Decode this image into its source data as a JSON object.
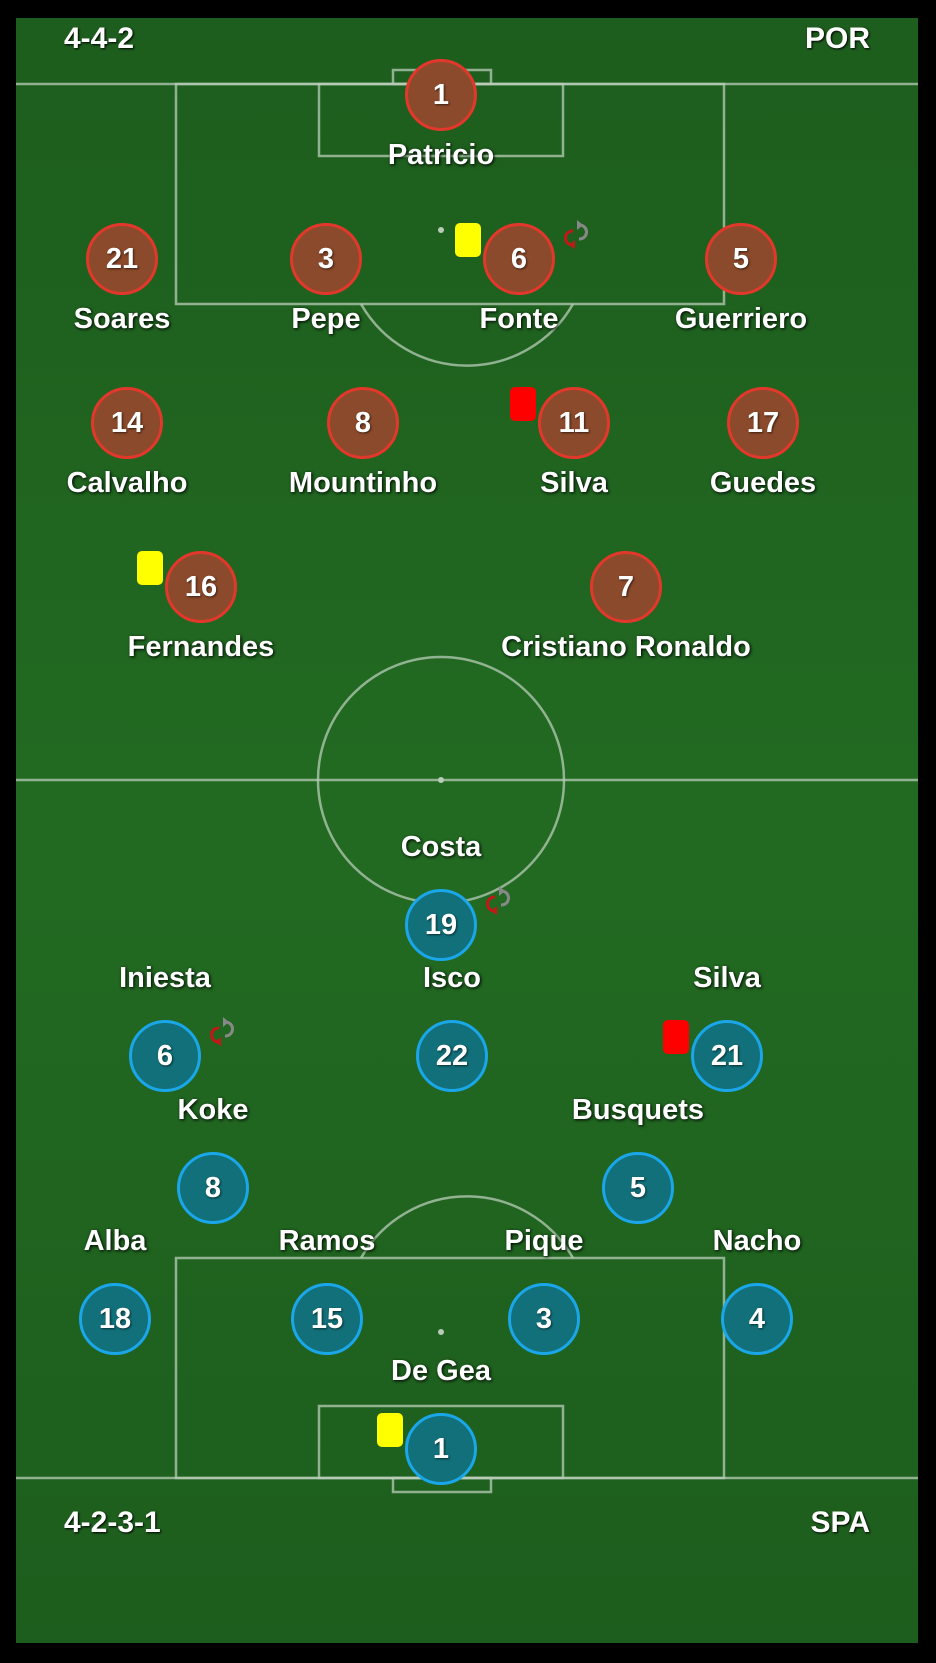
{
  "home": {
    "formation": "4-4-2",
    "team": "POR",
    "players": [
      {
        "number": "1",
        "name": "Patricio"
      },
      {
        "number": "21",
        "name": "Soares"
      },
      {
        "number": "3",
        "name": "Pepe"
      },
      {
        "number": "6",
        "name": "Fonte"
      },
      {
        "number": "5",
        "name": "Guerriero"
      },
      {
        "number": "14",
        "name": "Calvalho"
      },
      {
        "number": "8",
        "name": "Mountinho"
      },
      {
        "number": "11",
        "name": "Silva"
      },
      {
        "number": "17",
        "name": "Guedes"
      },
      {
        "number": "16",
        "name": "Fernandes"
      },
      {
        "number": "7",
        "name": "Cristiano Ronaldo"
      }
    ]
  },
  "away": {
    "formation": "4-2-3-1",
    "team": "SPA",
    "players": [
      {
        "number": "19",
        "name": "Costa"
      },
      {
        "number": "6",
        "name": "Iniesta"
      },
      {
        "number": "22",
        "name": "Isco"
      },
      {
        "number": "21",
        "name": "Silva"
      },
      {
        "number": "8",
        "name": "Koke"
      },
      {
        "number": "5",
        "name": "Busquets"
      },
      {
        "number": "18",
        "name": "Alba"
      },
      {
        "number": "15",
        "name": "Ramos"
      },
      {
        "number": "3",
        "name": "Pique"
      },
      {
        "number": "4",
        "name": "Nacho"
      },
      {
        "number": "1",
        "name": "De Gea"
      }
    ]
  },
  "colors": {
    "pitch": "#226a22",
    "home_fill": "#8b4a2b",
    "home_border": "#e2382c",
    "away_fill": "#12707a",
    "away_border": "#1aa6e8",
    "yellow_card": "#ffff00",
    "red_card": "#ff0000"
  },
  "icons": {
    "card": "card-icon",
    "substitution": "substitution-icon"
  }
}
